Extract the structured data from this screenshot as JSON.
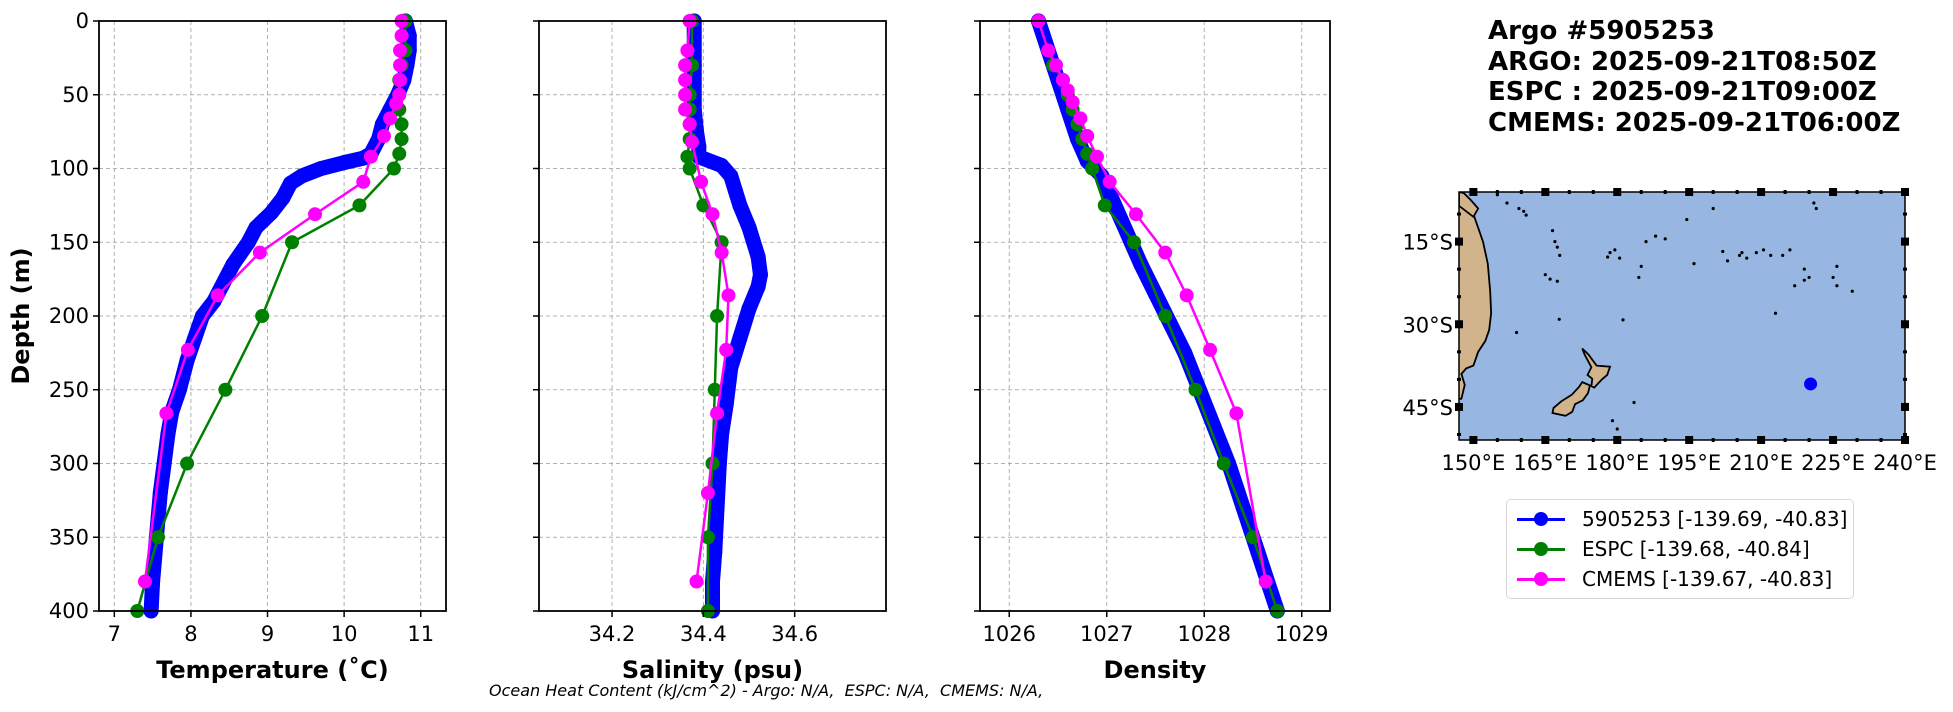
{
  "title": {
    "line1": "Argo #5905253",
    "line2": "ARGO: 2025-09-21T08:50Z",
    "line3": "ESPC : 2025-09-21T09:00Z",
    "line4": "CMEMS: 2025-09-21T06:00Z"
  },
  "footnote": "Ocean Heat Content (kJ/cm^2) - Argo: N/A,  ESPC: N/A,  CMEMS: N/A,",
  "colors": {
    "argo": "#0000ff",
    "espc": "#008000",
    "cmems": "#ff00ff",
    "ocean": "#97b6e1",
    "land": "#d2b48c"
  },
  "legend": [
    {
      "label": "5905253 [-139.69, -40.83]",
      "color": "#0000ff"
    },
    {
      "label": "ESPC [-139.68, -40.84]",
      "color": "#008000"
    },
    {
      "label": "CMEMS [-139.67, -40.83]",
      "color": "#ff00ff"
    }
  ],
  "chart_data": [
    {
      "type": "line",
      "id": "temperature",
      "xlabel": "Temperature (˚C)",
      "ylabel": "Depth (m)",
      "xlim": [
        6.8,
        11.33
      ],
      "ylim": [
        400,
        0
      ],
      "xticks": [
        "7",
        "8",
        "9",
        "10",
        "11"
      ],
      "xtick_values": [
        7,
        8,
        9,
        10,
        11
      ],
      "yticks": [
        "0",
        "50",
        "100",
        "150",
        "200",
        "250",
        "300",
        "350",
        "400"
      ],
      "ytick_values": [
        0,
        50,
        100,
        150,
        200,
        250,
        300,
        350,
        400
      ],
      "grid": true,
      "series": [
        {
          "name": "5905253",
          "style": "argo",
          "x": [
            10.8,
            10.85,
            10.85,
            10.82,
            10.78,
            10.7,
            10.6,
            10.5,
            10.45,
            10.35,
            10.25,
            10.0,
            9.7,
            9.45,
            9.3,
            9.2,
            9.05,
            8.95,
            8.85,
            8.75,
            8.55,
            8.45,
            8.3,
            8.15,
            8.05,
            7.95,
            7.85,
            7.75,
            7.7,
            7.65,
            7.6,
            7.55,
            7.5,
            7.48
          ],
          "y": [
            0,
            10,
            20,
            30,
            40,
            50,
            60,
            70,
            80,
            90,
            93,
            96,
            100,
            105,
            110,
            120,
            130,
            135,
            140,
            150,
            165,
            175,
            190,
            200,
            215,
            230,
            250,
            265,
            280,
            300,
            320,
            350,
            380,
            400
          ]
        },
        {
          "name": "ESPC",
          "style": "espc",
          "x": [
            10.8,
            10.8,
            10.75,
            10.72,
            10.72,
            10.72,
            10.75,
            10.75,
            10.72,
            10.65,
            10.2,
            9.32,
            8.93,
            8.45,
            7.95,
            7.57,
            7.3
          ],
          "y": [
            0,
            20,
            30,
            40,
            50,
            60,
            70,
            80,
            90,
            100,
            125,
            150,
            200,
            250,
            300,
            350,
            400
          ]
        },
        {
          "name": "CMEMS",
          "style": "cmems",
          "x": [
            10.75,
            10.75,
            10.73,
            10.73,
            10.73,
            10.72,
            10.68,
            10.6,
            10.52,
            10.35,
            10.25,
            9.62,
            8.9,
            8.35,
            7.96,
            7.68,
            7.4
          ],
          "y": [
            0,
            10,
            20,
            30,
            40,
            50,
            56,
            66,
            78,
            92,
            109,
            131,
            157,
            186,
            223,
            266,
            380
          ]
        }
      ]
    },
    {
      "type": "line",
      "id": "salinity",
      "xlabel": "Salinity (psu)",
      "xlim": [
        34.04,
        34.8
      ],
      "ylim": [
        400,
        0
      ],
      "xticks": [
        "34.2",
        "34.4",
        "34.6"
      ],
      "xtick_values": [
        34.2,
        34.4,
        34.6
      ],
      "ytick_values": [
        0,
        50,
        100,
        150,
        200,
        250,
        300,
        350,
        400
      ],
      "grid": true,
      "series": [
        {
          "name": "5905253",
          "style": "argo",
          "x": [
            34.38,
            34.38,
            34.38,
            34.385,
            34.39,
            34.39,
            34.44,
            34.46,
            34.47,
            34.48,
            34.5,
            34.52,
            34.525,
            34.52,
            34.5,
            34.48,
            34.46,
            34.45,
            34.44,
            34.435,
            34.43,
            34.425,
            34.42,
            34.42
          ],
          "y": [
            0,
            30,
            60,
            75,
            85,
            92,
            98,
            105,
            115,
            125,
            140,
            160,
            172,
            180,
            195,
            215,
            235,
            260,
            280,
            300,
            330,
            360,
            380,
            400
          ]
        },
        {
          "name": "ESPC",
          "style": "espc",
          "x": [
            34.375,
            34.375,
            34.37,
            34.37,
            34.37,
            34.37,
            34.365,
            34.37,
            34.4,
            34.44,
            34.43,
            34.425,
            34.42,
            34.41,
            34.41
          ],
          "y": [
            0,
            30,
            50,
            60,
            70,
            80,
            92,
            100,
            125,
            150,
            200,
            250,
            300,
            350,
            400
          ]
        },
        {
          "name": "CMEMS",
          "style": "cmems",
          "x": [
            34.37,
            34.365,
            34.36,
            34.36,
            34.36,
            34.36,
            34.37,
            34.375,
            34.395,
            34.42,
            34.44,
            34.455,
            34.45,
            34.43,
            34.41,
            34.385
          ],
          "y": [
            0,
            20,
            30,
            40,
            50,
            60,
            70,
            82,
            109,
            131,
            157,
            186,
            223,
            266,
            320,
            380
          ]
        }
      ]
    },
    {
      "type": "line",
      "id": "density",
      "xlabel": "Density",
      "xlim": [
        1025.7,
        1029.29
      ],
      "ylim": [
        400,
        0
      ],
      "xticks": [
        "1026",
        "1027",
        "1028",
        "1029"
      ],
      "xtick_values": [
        1026,
        1027,
        1028,
        1029
      ],
      "ytick_values": [
        0,
        50,
        100,
        150,
        200,
        250,
        300,
        350,
        400
      ],
      "grid": true,
      "series": [
        {
          "name": "5905253",
          "style": "argo",
          "x": [
            1026.3,
            1026.4,
            1026.5,
            1026.6,
            1026.7,
            1026.8,
            1026.95,
            1027.05,
            1027.15,
            1027.25,
            1027.35,
            1027.5,
            1027.65,
            1027.8,
            1027.95,
            1028.1,
            1028.25,
            1028.4,
            1028.55,
            1028.75
          ],
          "y": [
            0,
            20,
            40,
            60,
            80,
            95,
            105,
            120,
            135,
            150,
            165,
            185,
            205,
            225,
            250,
            275,
            300,
            330,
            360,
            400
          ]
        },
        {
          "name": "ESPC",
          "style": "espc",
          "x": [
            1026.3,
            1026.45,
            1026.55,
            1026.6,
            1026.65,
            1026.7,
            1026.75,
            1026.8,
            1026.85,
            1026.98,
            1027.28,
            1027.6,
            1027.91,
            1028.2,
            1028.5,
            1028.75
          ],
          "y": [
            0,
            30,
            40,
            50,
            60,
            70,
            80,
            90,
            100,
            125,
            150,
            200,
            250,
            300,
            350,
            400
          ]
        },
        {
          "name": "CMEMS",
          "style": "cmems",
          "x": [
            1026.3,
            1026.4,
            1026.48,
            1026.55,
            1026.6,
            1026.65,
            1026.73,
            1026.8,
            1026.9,
            1027.03,
            1027.3,
            1027.6,
            1027.82,
            1028.06,
            1028.33,
            1028.63
          ],
          "y": [
            0,
            20,
            30,
            40,
            47,
            55,
            66,
            78,
            92,
            109,
            131,
            157,
            186,
            223,
            266,
            380
          ]
        }
      ]
    },
    {
      "type": "map",
      "id": "location-map",
      "lon_range": [
        147,
        240
      ],
      "lat_range": [
        -51,
        -6
      ],
      "xticks": [
        "150°E",
        "165°E",
        "180°E",
        "195°E",
        "210°E",
        "225°E",
        "240°E"
      ],
      "xtick_values": [
        150,
        165,
        180,
        195,
        210,
        225,
        240
      ],
      "yticks": [
        "15°S",
        "30°S",
        "45°S"
      ],
      "ytick_values": [
        -15,
        -30,
        -45
      ],
      "marker": {
        "lon": 220.31,
        "lat": -40.83,
        "color": "#0000ff"
      }
    }
  ]
}
